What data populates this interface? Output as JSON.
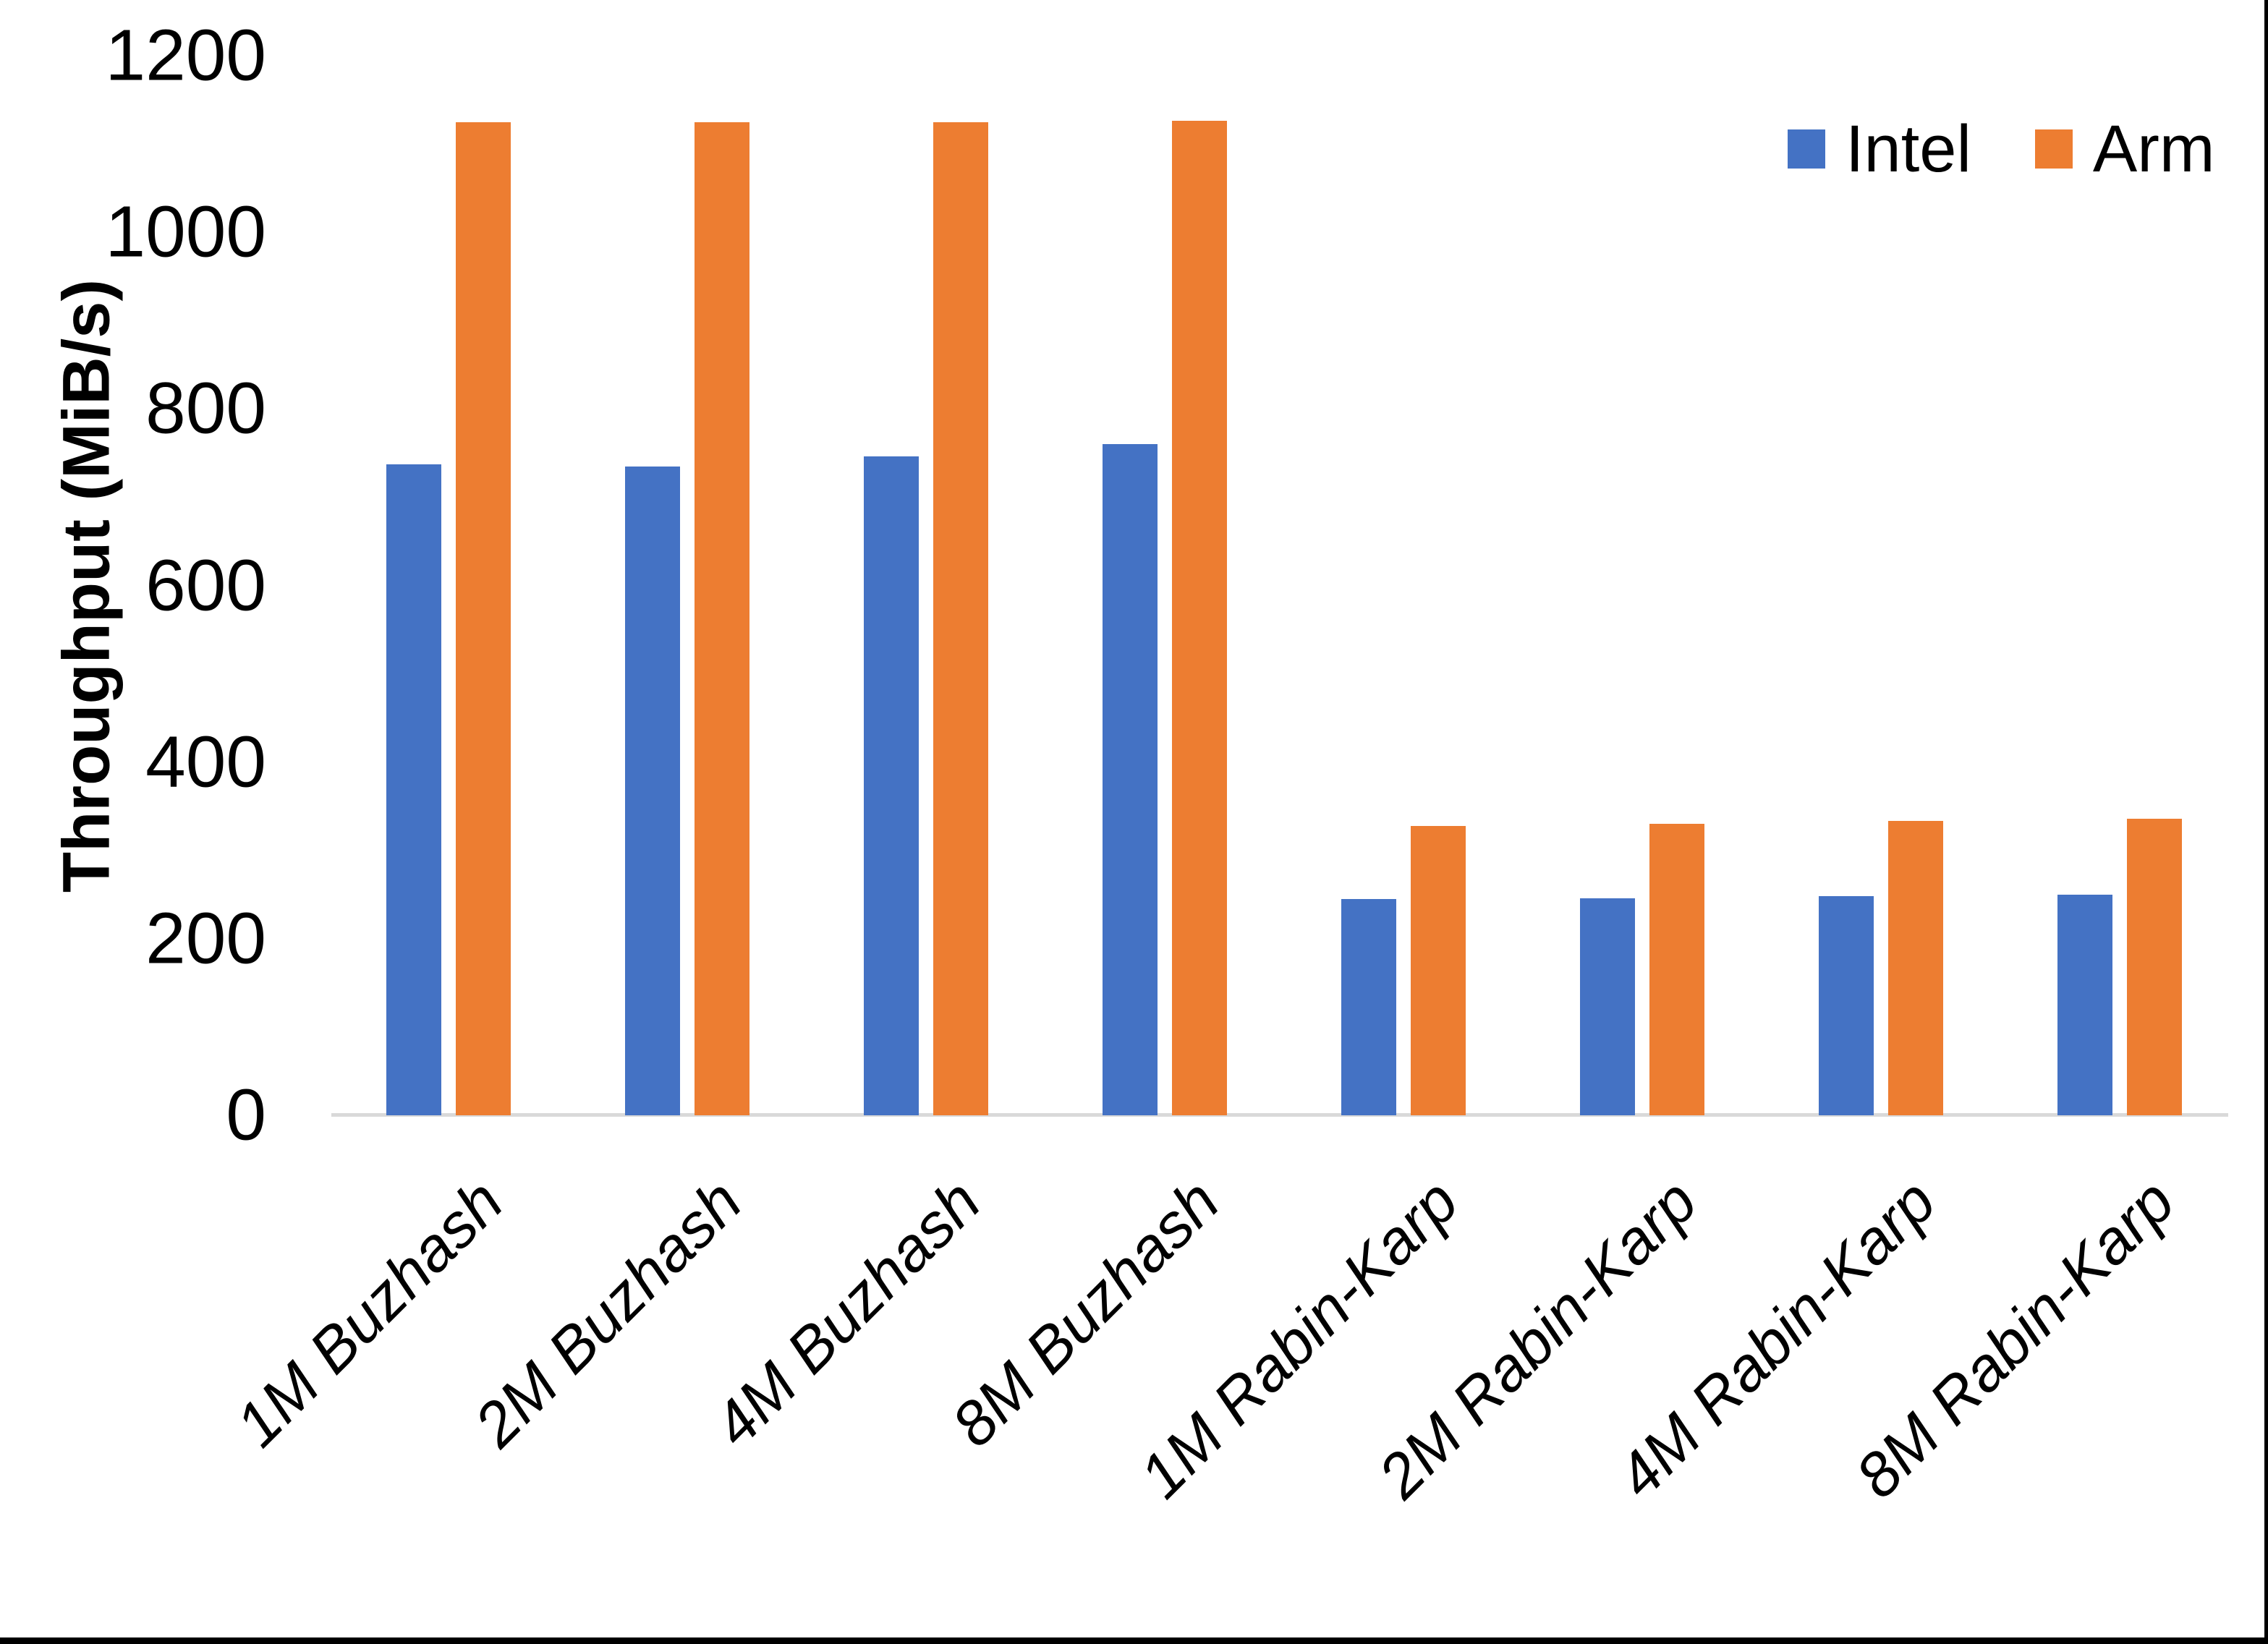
{
  "chart_data": {
    "type": "bar",
    "title": "",
    "xlabel": "",
    "ylabel": "Throughput (MiB/s)",
    "ylim": [
      0,
      1200
    ],
    "yticks": [
      0,
      200,
      400,
      600,
      800,
      1000,
      1200
    ],
    "grid": false,
    "legend_position": "top-right",
    "categories": [
      "1M Buzhash",
      "2M Buzhash",
      "4M Buzhash",
      "8M Buzhash",
      "1M Rabin-Karp",
      "2M Rabin-Karp",
      "4M Rabin-Karp",
      "8M Rabin-Karp"
    ],
    "series": [
      {
        "name": "Intel",
        "color": "#4472C4",
        "values": [
          737,
          735,
          746,
          760,
          245,
          246,
          248,
          250
        ]
      },
      {
        "name": "Arm",
        "color": "#ED7D31",
        "values": [
          1125,
          1125,
          1125,
          1126,
          328,
          330,
          333,
          336
        ]
      }
    ],
    "axis_line_color": "#D9D9D9",
    "text_color": "#000000",
    "background_color": "#FFFFFF"
  }
}
